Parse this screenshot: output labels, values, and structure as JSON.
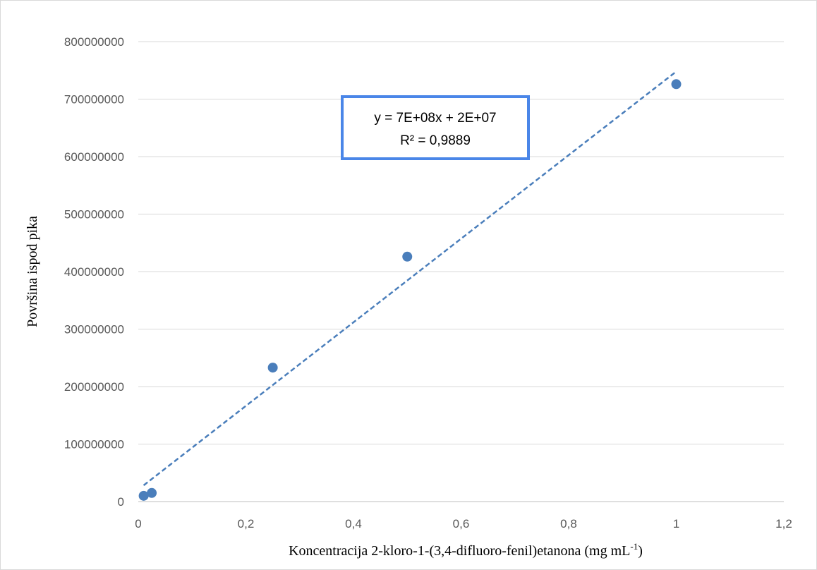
{
  "chart_data": {
    "type": "scatter",
    "xlabel": "Koncentracija 2-kloro-1-(3,4-difluoro-fenil)etanona (mg mL",
    "xlabel_sup": "-1",
    "xlabel_end": ")",
    "ylabel": "Površina ispod pika",
    "xlim": [
      0,
      1.2
    ],
    "ylim": [
      0,
      800000000
    ],
    "x_ticks": [
      0,
      0.2,
      0.4,
      0.6,
      0.8,
      1,
      1.2
    ],
    "x_tick_labels": [
      "0",
      "0,2",
      "0,4",
      "0,6",
      "0,8",
      "1",
      "1,2"
    ],
    "y_ticks": [
      0,
      100000000,
      200000000,
      300000000,
      400000000,
      500000000,
      600000000,
      700000000,
      800000000
    ],
    "y_tick_labels": [
      "0",
      "100000000",
      "200000000",
      "300000000",
      "400000000",
      "500000000",
      "600000000",
      "700000000",
      "800000000"
    ],
    "grid": "horizontal",
    "legend": "none",
    "points": [
      {
        "x": 0.01,
        "y": 10000000
      },
      {
        "x": 0.025,
        "y": 15000000
      },
      {
        "x": 0.25,
        "y": 233000000
      },
      {
        "x": 0.5,
        "y": 426000000
      },
      {
        "x": 1,
        "y": 726000000
      }
    ],
    "trendline": {
      "style": "dashed",
      "x_range": [
        0.01,
        1
      ],
      "slope": 727000000,
      "intercept": 21000000,
      "equation": "y = 7E+08x + 2E+07",
      "r_squared": "R² = 0,9889"
    },
    "colors": {
      "point": "#4a7ebb",
      "trendline": "#4a7ebb",
      "equation_box_border": "#4a86e8",
      "grid": "#d9d9d9"
    }
  }
}
